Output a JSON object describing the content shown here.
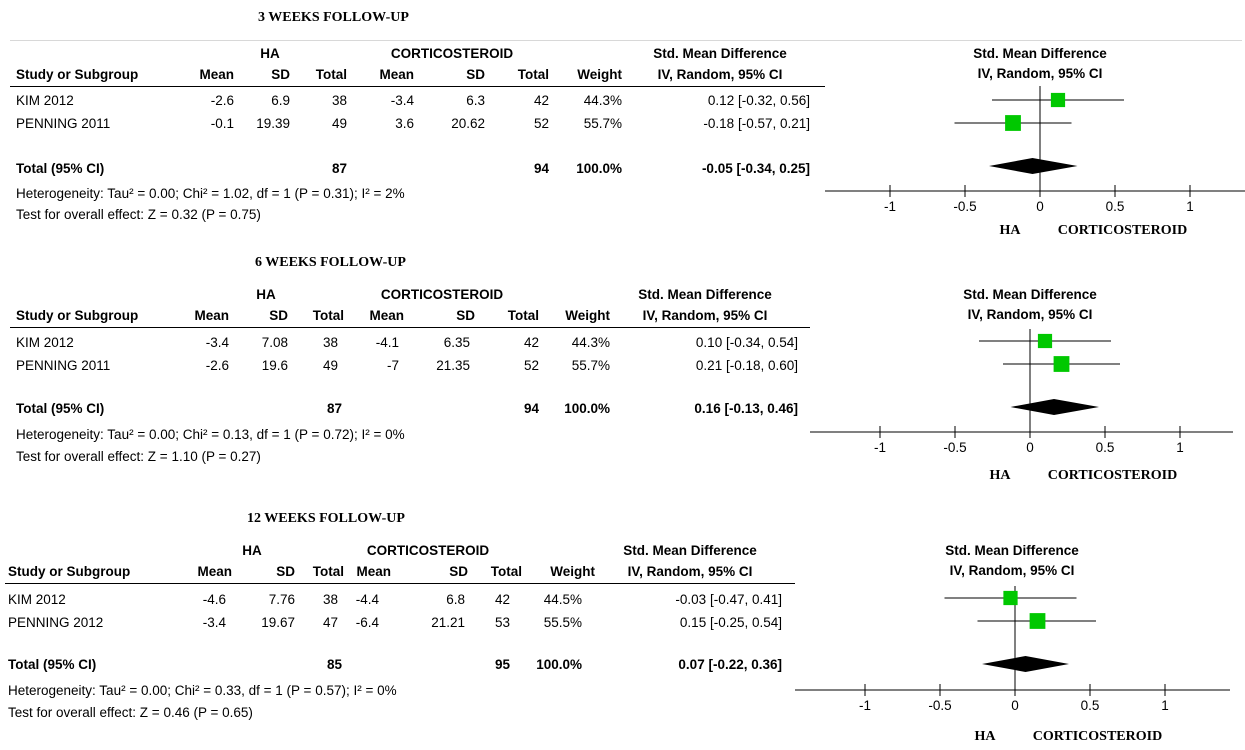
{
  "colors": {
    "square": "#00c800",
    "diamond": "#000000",
    "line": "#000000"
  },
  "chart_data": [
    {
      "type": "forest",
      "title": "3 WEEKS FOLLOW-UP",
      "group1": "HA",
      "group2": "CORTICOSTEROID",
      "headers": {
        "study": "Study or Subgroup",
        "mean": "Mean",
        "sd": "SD",
        "total": "Total",
        "weight": "Weight",
        "effect_title": "Std. Mean Difference",
        "effect_sub": "IV, Random, 95% CI"
      },
      "studies": [
        {
          "name": "KIM 2012",
          "m1": "-2.6",
          "sd1": "6.9",
          "n1": "38",
          "m2": "-3.4",
          "sd2": "6.3",
          "n2": "42",
          "weight": "44.3%",
          "ci_text": "0.12 [-0.32, 0.56]",
          "est": 0.12,
          "lo": -0.32,
          "hi": 0.56,
          "w": 44.3
        },
        {
          "name": "PENNING 2011",
          "m1": "-0.1",
          "sd1": "19.39",
          "n1": "49",
          "m2": "3.6",
          "sd2": "20.62",
          "n2": "52",
          "weight": "55.7%",
          "ci_text": "-0.18 [-0.57, 0.21]",
          "est": -0.18,
          "lo": -0.57,
          "hi": 0.21,
          "w": 55.7
        }
      ],
      "total": {
        "label": "Total (95% CI)",
        "n1": "87",
        "n2": "94",
        "weight": "100.0%",
        "ci_text": "-0.05 [-0.34, 0.25]",
        "est": -0.05,
        "lo": -0.34,
        "hi": 0.25
      },
      "heterogeneity": "Heterogeneity: Tau² = 0.00; Chi² = 1.02, df = 1 (P = 0.31); I² = 2%",
      "overall": "Test for overall effect: Z = 0.32 (P = 0.75)",
      "xlim": [
        -1,
        1
      ],
      "ticks": [
        "-1",
        "-0.5",
        "0",
        "0.5",
        "1"
      ],
      "tick_values": [
        -1,
        -0.5,
        0,
        0.5,
        1
      ],
      "favours_left": "HA",
      "favours_right": "CORTICOSTEROID"
    },
    {
      "type": "forest",
      "title": "6 WEEKS FOLLOW-UP",
      "group1": "HA",
      "group2": "CORTICOSTEROID",
      "headers": {
        "study": "Study or Subgroup",
        "mean": "Mean",
        "sd": "SD",
        "total": "Total",
        "weight": "Weight",
        "effect_title": "Std. Mean Difference",
        "effect_sub": "IV, Random, 95% CI"
      },
      "studies": [
        {
          "name": "KIM 2012",
          "m1": "-3.4",
          "sd1": "7.08",
          "n1": "38",
          "m2": "-4.1",
          "sd2": "6.35",
          "n2": "42",
          "weight": "44.3%",
          "ci_text": "0.10 [-0.34, 0.54]",
          "est": 0.1,
          "lo": -0.34,
          "hi": 0.54,
          "w": 44.3
        },
        {
          "name": "PENNING 2011",
          "m1": "-2.6",
          "sd1": "19.6",
          "n1": "49",
          "m2": "-7",
          "sd2": "21.35",
          "n2": "52",
          "weight": "55.7%",
          "ci_text": "0.21 [-0.18, 0.60]",
          "est": 0.21,
          "lo": -0.18,
          "hi": 0.6,
          "w": 55.7
        }
      ],
      "total": {
        "label": "Total (95% CI)",
        "n1": "87",
        "n2": "94",
        "weight": "100.0%",
        "ci_text": "0.16 [-0.13, 0.46]",
        "est": 0.16,
        "lo": -0.13,
        "hi": 0.46
      },
      "heterogeneity": "Heterogeneity: Tau² = 0.00; Chi² = 0.13, df = 1 (P = 0.72); I² = 0%",
      "overall": "Test for overall effect: Z = 1.10 (P = 0.27)",
      "xlim": [
        -1,
        1
      ],
      "ticks": [
        "-1",
        "-0.5",
        "0",
        "0.5",
        "1"
      ],
      "tick_values": [
        -1,
        -0.5,
        0,
        0.5,
        1
      ],
      "favours_left": "HA",
      "favours_right": "CORTICOSTEROID"
    },
    {
      "type": "forest",
      "title": "12 WEEKS FOLLOW-UP",
      "group1": "HA",
      "group2": "CORTICOSTEROID",
      "headers": {
        "study": "Study or Subgroup",
        "mean": "Mean",
        "sd": "SD",
        "total": "Total",
        "weight": "Weight",
        "effect_title": "Std. Mean Difference",
        "effect_sub": "IV, Random, 95% CI"
      },
      "studies": [
        {
          "name": "KIM 2012",
          "m1": "-4.6",
          "sd1": "7.76",
          "n1": "38",
          "m2": "-4.4",
          "sd2": "6.8",
          "n2": "42",
          "weight": "44.5%",
          "ci_text": "-0.03 [-0.47, 0.41]",
          "est": -0.03,
          "lo": -0.47,
          "hi": 0.41,
          "w": 44.5
        },
        {
          "name": "PENNING 2012",
          "m1": "-3.4",
          "sd1": "19.67",
          "n1": "47",
          "m2": "-6.4",
          "sd2": "21.21",
          "n2": "53",
          "weight": "55.5%",
          "ci_text": "0.15 [-0.25, 0.54]",
          "est": 0.15,
          "lo": -0.25,
          "hi": 0.54,
          "w": 55.5
        }
      ],
      "total": {
        "label": "Total (95% CI)",
        "n1": "85",
        "n2": "95",
        "weight": "100.0%",
        "ci_text": "0.07 [-0.22, 0.36]",
        "est": 0.07,
        "lo": -0.22,
        "hi": 0.36
      },
      "heterogeneity": "Heterogeneity: Tau² = 0.00; Chi² = 0.33, df = 1 (P = 0.57); I² = 0%",
      "overall": "Test for overall effect: Z = 0.46 (P = 0.65)",
      "xlim": [
        -1,
        1
      ],
      "ticks": [
        "-1",
        "-0.5",
        "0",
        "0.5",
        "1"
      ],
      "tick_values": [
        -1,
        -0.5,
        0,
        0.5,
        1
      ],
      "favours_left": "HA",
      "favours_right": "CORTICOSTEROID"
    }
  ]
}
